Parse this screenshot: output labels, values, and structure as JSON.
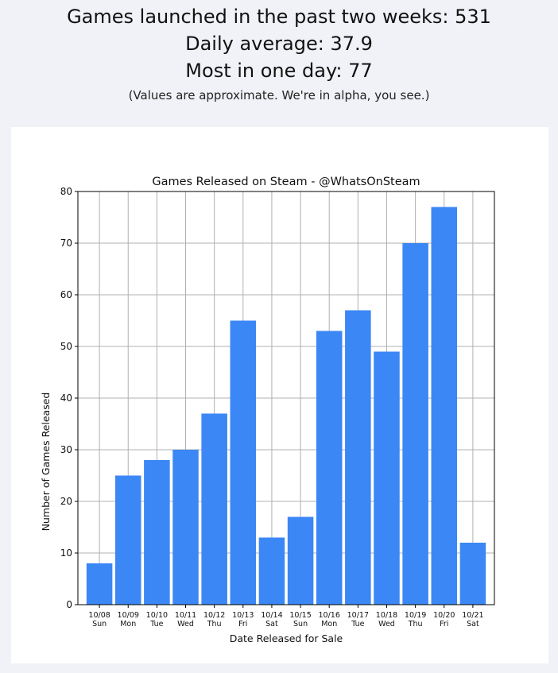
{
  "header": {
    "games_launched": "Games launched in the past two weeks: 531",
    "daily_average": "Daily average: 37.9",
    "most_in_one_day": "Most in one day: 77",
    "note": "(Values are approximate. We're in alpha, you see.)"
  },
  "chart_data": {
    "type": "bar",
    "title": "Games Released on Steam - @WhatsOnSteam",
    "xlabel": "Date Released for Sale",
    "ylabel": "Number of Games Released",
    "ylim": [
      0,
      80
    ],
    "yticks": [
      0,
      10,
      20,
      30,
      40,
      50,
      60,
      70,
      80
    ],
    "grid": true,
    "categories": [
      {
        "date": "10/08",
        "day": "Sun"
      },
      {
        "date": "10/09",
        "day": "Mon"
      },
      {
        "date": "10/10",
        "day": "Tue"
      },
      {
        "date": "10/11",
        "day": "Wed"
      },
      {
        "date": "10/12",
        "day": "Thu"
      },
      {
        "date": "10/13",
        "day": "Fri"
      },
      {
        "date": "10/14",
        "day": "Sat"
      },
      {
        "date": "10/15",
        "day": "Sun"
      },
      {
        "date": "10/16",
        "day": "Mon"
      },
      {
        "date": "10/17",
        "day": "Tue"
      },
      {
        "date": "10/18",
        "day": "Wed"
      },
      {
        "date": "10/19",
        "day": "Thu"
      },
      {
        "date": "10/20",
        "day": "Fri"
      },
      {
        "date": "10/21",
        "day": "Sat"
      }
    ],
    "values": [
      8,
      25,
      28,
      30,
      37,
      55,
      13,
      17,
      53,
      57,
      49,
      70,
      77,
      12
    ],
    "bar_color": "#3b87f5"
  }
}
